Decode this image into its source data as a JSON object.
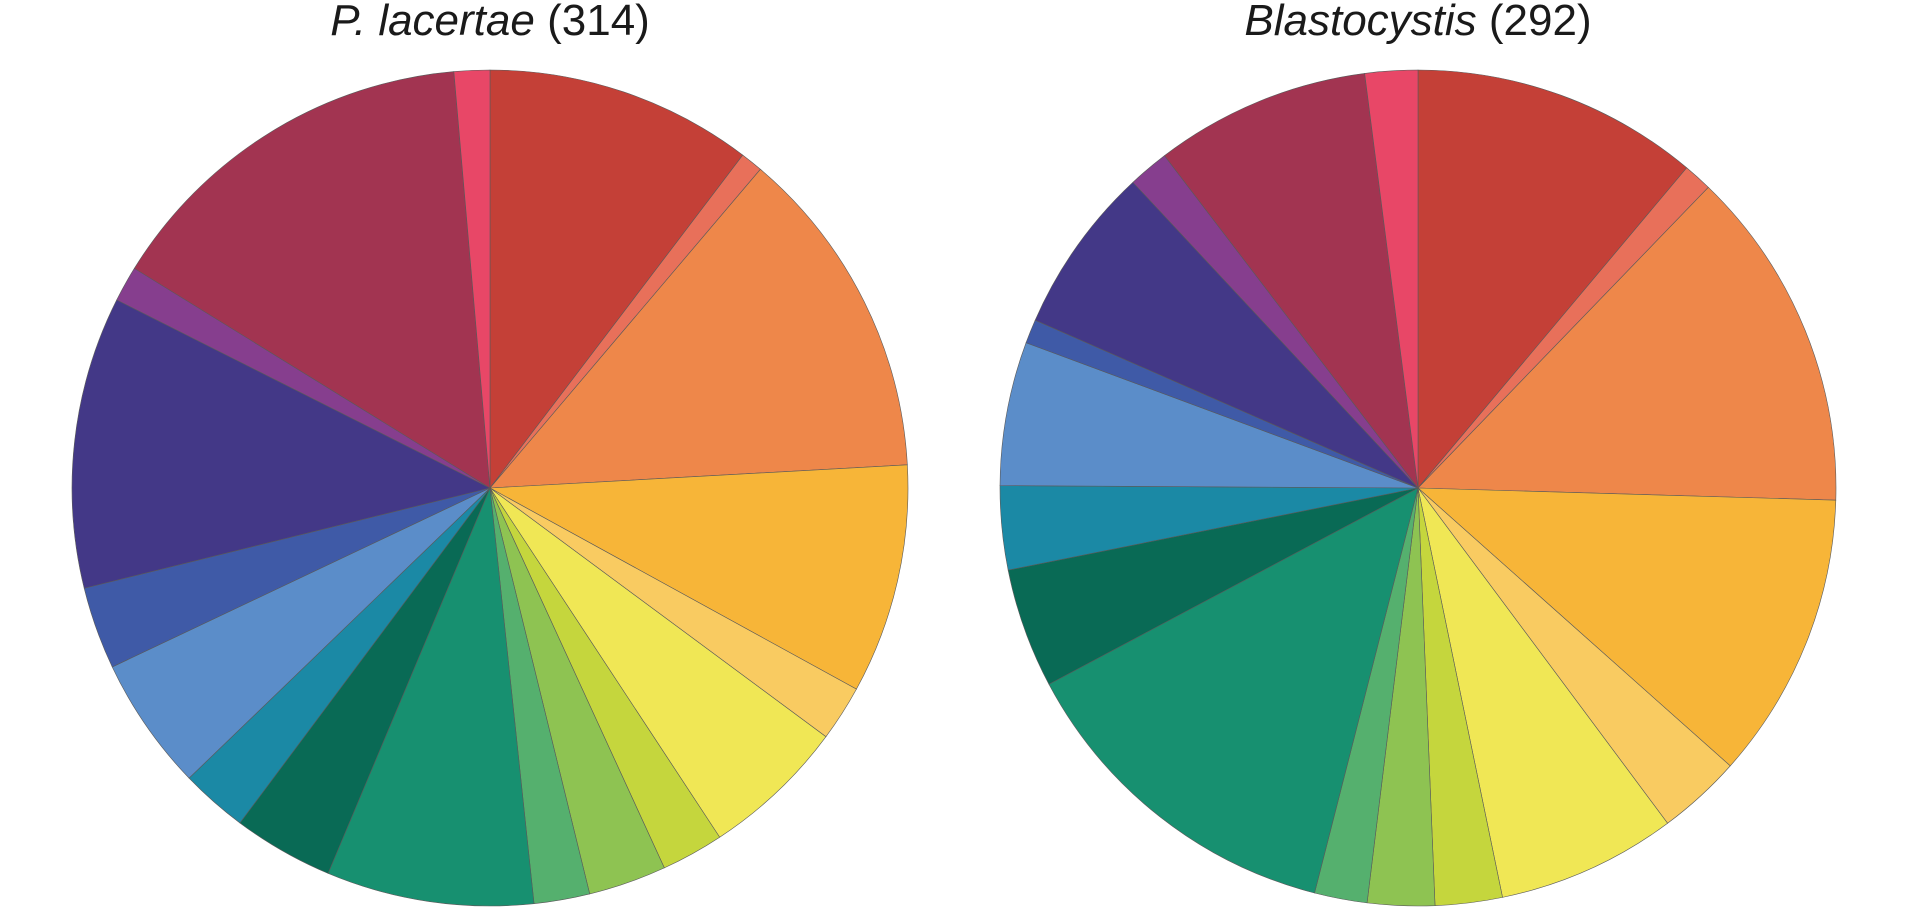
{
  "chart_data": [
    {
      "type": "pie",
      "title": "P. lacertae (314)",
      "title_parts": {
        "species": "P. lacertae",
        "count": "(314)"
      },
      "start": "top",
      "direction": "clockwise",
      "slices": [
        {
          "value": 0.12,
          "color": "#C44037"
        },
        {
          "value": 0.01,
          "color": "#E8705A"
        },
        {
          "value": 0.15,
          "color": "#EE874A"
        },
        {
          "value": 0.103,
          "color": "#F7B538"
        },
        {
          "value": 0.025,
          "color": "#F9CB61"
        },
        {
          "value": 0.065,
          "color": "#F0E755"
        },
        {
          "value": 0.028,
          "color": "#C5D63D"
        },
        {
          "value": 0.035,
          "color": "#8EC352"
        },
        {
          "value": 0.025,
          "color": "#55B06E"
        },
        {
          "value": 0.093,
          "color": "#179070"
        },
        {
          "value": 0.045,
          "color": "#096A55"
        },
        {
          "value": 0.03,
          "color": "#1B89A5"
        },
        {
          "value": 0.06,
          "color": "#5B8DC9"
        },
        {
          "value": 0.037,
          "color": "#3F5AA7"
        },
        {
          "value": 0.131,
          "color": "#433887"
        },
        {
          "value": 0.016,
          "color": "#863E8E"
        },
        {
          "value": 0.172,
          "color": "#A23451"
        },
        {
          "value": 0.016,
          "color": "#E84767"
        }
      ]
    },
    {
      "type": "pie",
      "title": "Blastocystis (292)",
      "title_parts": {
        "species": "Blastocystis",
        "count": "(292)"
      },
      "start": "top",
      "direction": "clockwise",
      "slices": [
        {
          "value": 0.12,
          "color": "#C44037"
        },
        {
          "value": 0.012,
          "color": "#E8705A"
        },
        {
          "value": 0.143,
          "color": "#EE874A"
        },
        {
          "value": 0.12,
          "color": "#F7B538"
        },
        {
          "value": 0.035,
          "color": "#F9CB61"
        },
        {
          "value": 0.075,
          "color": "#F0E755"
        },
        {
          "value": 0.028,
          "color": "#C5D63D"
        },
        {
          "value": 0.028,
          "color": "#8EC352"
        },
        {
          "value": 0.022,
          "color": "#55B06E"
        },
        {
          "value": 0.143,
          "color": "#179070"
        },
        {
          "value": 0.05,
          "color": "#096A55"
        },
        {
          "value": 0.035,
          "color": "#1B89A5"
        },
        {
          "value": 0.06,
          "color": "#5B8DC9"
        },
        {
          "value": 0.01,
          "color": "#3F5AA7"
        },
        {
          "value": 0.07,
          "color": "#433887"
        },
        {
          "value": 0.017,
          "color": "#863E8E"
        },
        {
          "value": 0.09,
          "color": "#A23451"
        },
        {
          "value": 0.022,
          "color": "#E84767"
        }
      ]
    }
  ]
}
